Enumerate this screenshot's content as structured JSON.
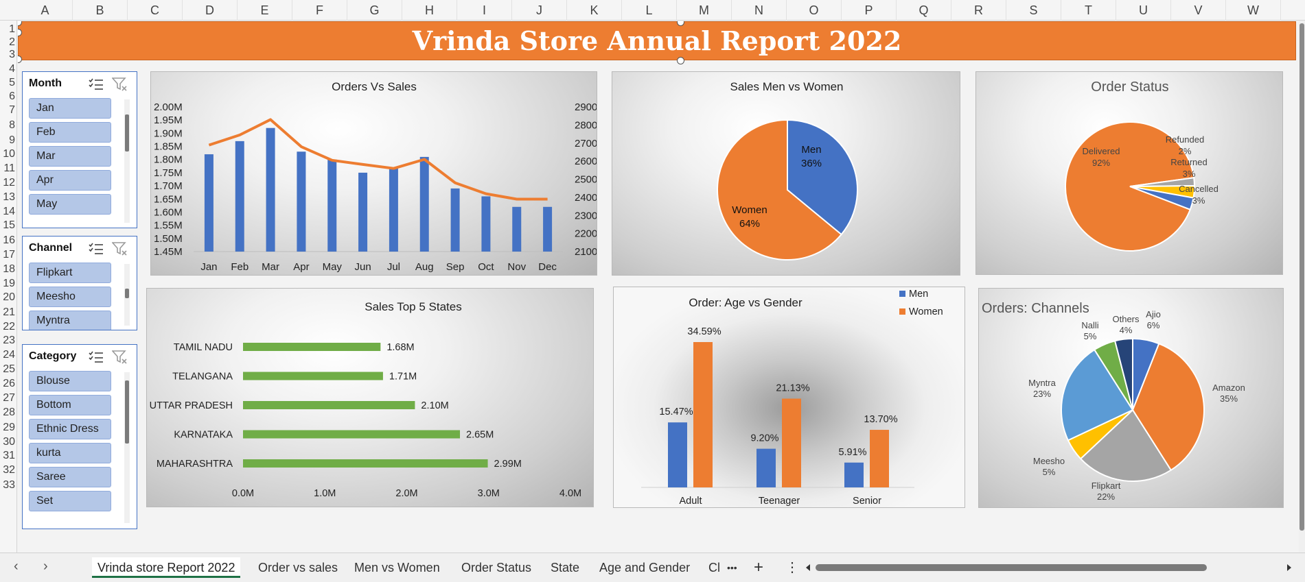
{
  "columns": [
    "A",
    "B",
    "C",
    "D",
    "E",
    "F",
    "G",
    "H",
    "I",
    "J",
    "K",
    "L",
    "M",
    "N",
    "O",
    "P",
    "Q",
    "R",
    "S",
    "T",
    "U",
    "V",
    "W"
  ],
  "rows": [
    "1",
    "2",
    "3",
    "4",
    "5",
    "6",
    "7",
    "8",
    "9",
    "10",
    "11",
    "12",
    "13",
    "14",
    "15",
    "16",
    "17",
    "18",
    "19",
    "20",
    "21",
    "22",
    "23",
    "24",
    "25",
    "26",
    "27",
    "28",
    "29",
    "30",
    "31",
    "32",
    "33"
  ],
  "banner": {
    "title": "Vrinda Store Annual Report 2022",
    "color": "#ed7d31"
  },
  "slicers": {
    "month": {
      "title": "Month",
      "items": [
        "Jan",
        "Feb",
        "Mar",
        "Apr",
        "May"
      ]
    },
    "channel": {
      "title": "Channel",
      "items": [
        "Flipkart",
        "Meesho",
        "Myntra"
      ]
    },
    "category": {
      "title": "Category",
      "items": [
        "Blouse",
        "Bottom",
        "Ethnic Dress",
        "kurta",
        "Saree",
        "Set"
      ]
    }
  },
  "icons": [
    "multi-select-icon",
    "clear-filter-icon"
  ],
  "chart_data": [
    {
      "type": "bar",
      "title": "Orders Vs Sales",
      "categories": [
        "Jan",
        "Feb",
        "Mar",
        "Apr",
        "May",
        "Jun",
        "Jul",
        "Aug",
        "Sep",
        "Oct",
        "Nov",
        "Dec"
      ],
      "series": [
        {
          "values": [
            1.82,
            1.87,
            1.92,
            1.83,
            1.8,
            1.75,
            1.77,
            1.81,
            1.69,
            1.66,
            1.62,
            1.62
          ],
          "color": "#4472c4"
        },
        {
          "type": "line",
          "values": [
            2689,
            2745,
            2830,
            2680,
            2605,
            2582,
            2560,
            2610,
            2480,
            2420,
            2390,
            2390
          ],
          "color": "#ed7d31"
        }
      ],
      "y_ticks": [
        "2.00M",
        "1.95M",
        "1.90M",
        "1.85M",
        "1.80M",
        "1.75M",
        "1.70M",
        "1.65M",
        "1.60M",
        "1.55M",
        "1.50M",
        "1.45M"
      ],
      "y2_ticks": [
        "2900",
        "2800",
        "2700",
        "2600",
        "2500",
        "2400",
        "2300",
        "2200",
        "2100"
      ],
      "ylim": [
        1.45,
        2.0
      ],
      "y2lim": [
        2100,
        2900
      ]
    },
    {
      "type": "pie",
      "title": "Sales Men vs Women",
      "slices": [
        {
          "name": "Men",
          "value": 36,
          "color": "#4472c4"
        },
        {
          "name": "Women",
          "value": 64,
          "color": "#ed7d31"
        }
      ]
    },
    {
      "type": "pie",
      "title": "Order Status",
      "slices": [
        {
          "name": "Delivered",
          "value": 92,
          "color": "#ed7d31"
        },
        {
          "name": "Refunded",
          "value": 2,
          "color": "#a5a5a5"
        },
        {
          "name": "Returned",
          "value": 3,
          "color": "#ffc000"
        },
        {
          "name": "Cancelled",
          "value": 3,
          "color": "#4472c4"
        }
      ]
    },
    {
      "type": "bar",
      "title": "Sales Top 5 States",
      "orientation": "horizontal",
      "categories": [
        "TAMIL NADU",
        "TELANGANA",
        "UTTAR PRADESH",
        "KARNATAKA",
        "MAHARASHTRA"
      ],
      "values": [
        1.68,
        1.71,
        2.1,
        2.65,
        2.99
      ],
      "labels": [
        "1.68M",
        "1.71M",
        "2.10M",
        "2.65M",
        "2.99M"
      ],
      "x_ticks": [
        "0.0M",
        "1.0M",
        "2.0M",
        "3.0M",
        "4.0M"
      ],
      "xlim": [
        0,
        4
      ],
      "color": "#70ad47"
    },
    {
      "type": "bar",
      "title": "Order: Age vs Gender",
      "categories": [
        "Adult",
        "Teenager",
        "Senior"
      ],
      "series": [
        {
          "name": "Men",
          "values": [
            15.47,
            9.2,
            5.91
          ],
          "labels": [
            "15.47%",
            "9.20%",
            "5.91%"
          ],
          "color": "#4472c4"
        },
        {
          "name": "Women",
          "values": [
            34.59,
            21.13,
            13.7
          ],
          "labels": [
            "34.59%",
            "21.13%",
            "13.70%"
          ],
          "color": "#ed7d31"
        }
      ],
      "legend": "top-right"
    },
    {
      "type": "pie",
      "title": "Orders: Channels",
      "slices": [
        {
          "name": "Ajio",
          "value": 6,
          "color": "#4472c4"
        },
        {
          "name": "Amazon",
          "value": 35,
          "color": "#ed7d31"
        },
        {
          "name": "Flipkart",
          "value": 22,
          "color": "#a5a5a5"
        },
        {
          "name": "Meesho",
          "value": 5,
          "color": "#ffc000"
        },
        {
          "name": "Myntra",
          "value": 23,
          "color": "#5b9bd5"
        },
        {
          "name": "Nalli",
          "value": 5,
          "color": "#70ad47"
        },
        {
          "name": "Others",
          "value": 4,
          "color": "#264478"
        }
      ]
    }
  ],
  "tabs": [
    "Vrinda store Report 2022",
    "Order vs sales",
    "Men vs Women",
    "Order Status",
    "State",
    "Age and Gender",
    "Cl"
  ],
  "tabbar": {
    "more": "•••",
    "add": "+",
    "menu": "⋮",
    "prev": "‹",
    "next": "›"
  }
}
